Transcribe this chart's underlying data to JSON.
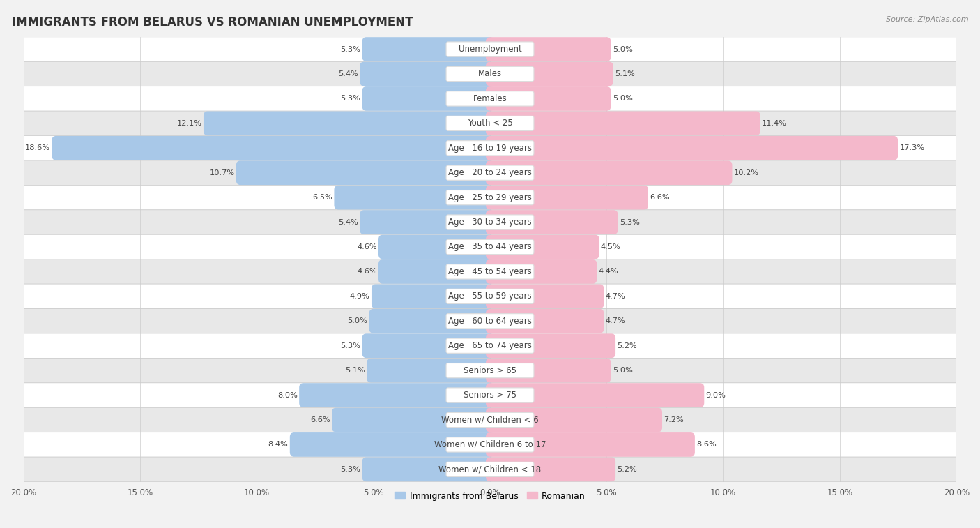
{
  "title": "IMMIGRANTS FROM BELARUS VS ROMANIAN UNEMPLOYMENT",
  "source": "Source: ZipAtlas.com",
  "categories": [
    "Unemployment",
    "Males",
    "Females",
    "Youth < 25",
    "Age | 16 to 19 years",
    "Age | 20 to 24 years",
    "Age | 25 to 29 years",
    "Age | 30 to 34 years",
    "Age | 35 to 44 years",
    "Age | 45 to 54 years",
    "Age | 55 to 59 years",
    "Age | 60 to 64 years",
    "Age | 65 to 74 years",
    "Seniors > 65",
    "Seniors > 75",
    "Women w/ Children < 6",
    "Women w/ Children 6 to 17",
    "Women w/ Children < 18"
  ],
  "belarus_values": [
    5.3,
    5.4,
    5.3,
    12.1,
    18.6,
    10.7,
    6.5,
    5.4,
    4.6,
    4.6,
    4.9,
    5.0,
    5.3,
    5.1,
    8.0,
    6.6,
    8.4,
    5.3
  ],
  "romanian_values": [
    5.0,
    5.1,
    5.0,
    11.4,
    17.3,
    10.2,
    6.6,
    5.3,
    4.5,
    4.4,
    4.7,
    4.7,
    5.2,
    5.0,
    9.0,
    7.2,
    8.6,
    5.2
  ],
  "belarus_color": "#a8c8e8",
  "romanian_color": "#f4b8cb",
  "bg_main": "#f2f2f2",
  "row_color_odd": "#ffffff",
  "row_color_even": "#e8e8e8",
  "xlim": 20.0,
  "legend_belarus": "Immigrants from Belarus",
  "legend_romanian": "Romanian",
  "bar_height": 0.62,
  "label_fontsize": 8.5,
  "value_fontsize": 8.2
}
